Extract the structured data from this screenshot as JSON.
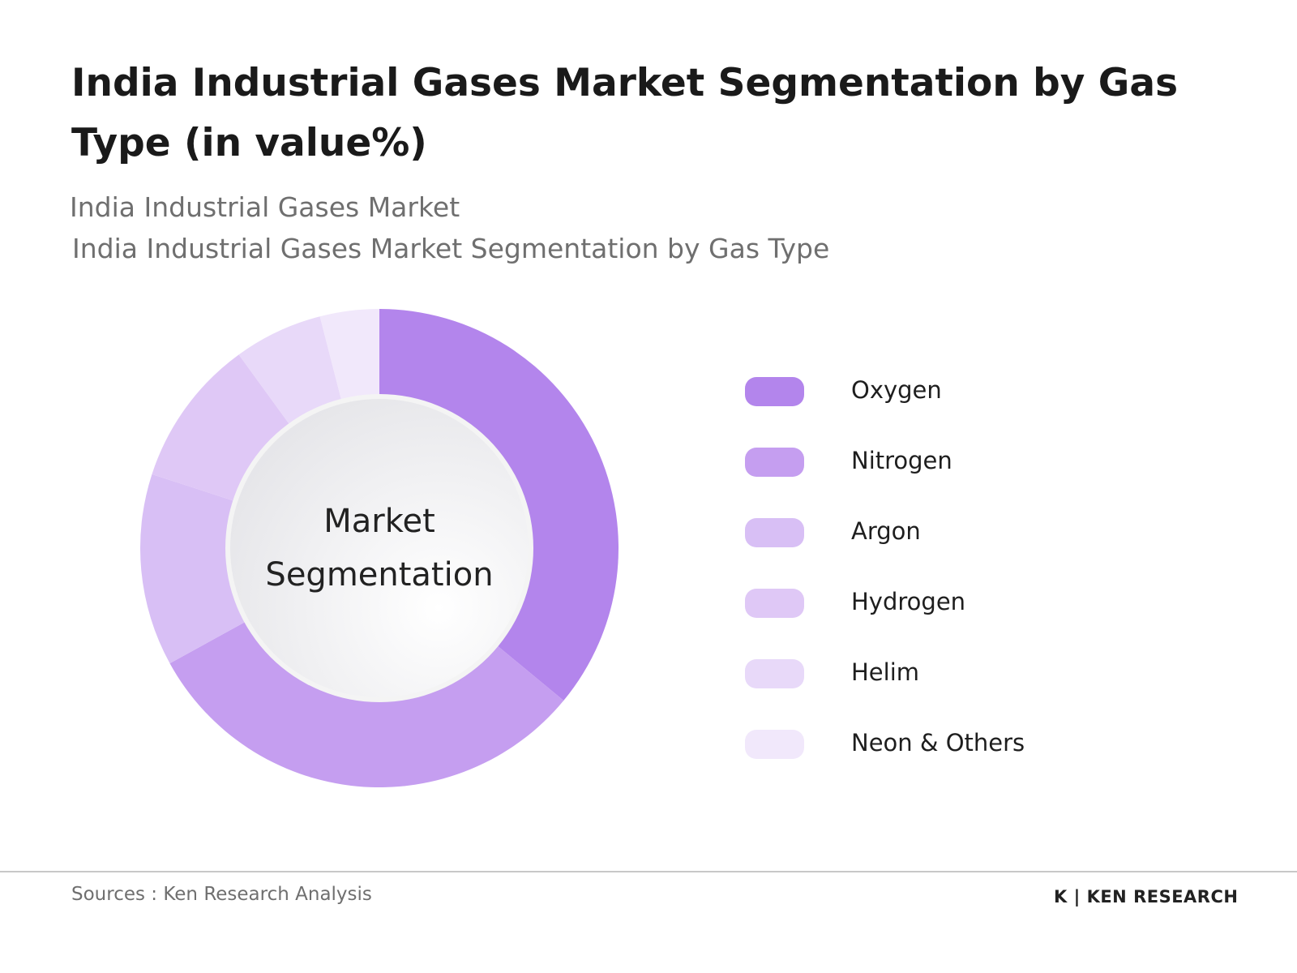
{
  "chart_data": {
    "type": "pie",
    "title": "India Industrial Gases Market Segmentation by Gas Type (in value%)",
    "subtitles": [
      "India Industrial Gases Market",
      "India Industrial Gases Market Segmentation by Gas Type"
    ],
    "center_label": "Market Segmentation",
    "categories": [
      "Oxygen",
      "Nitrogen",
      "Argon",
      "Hydrogen",
      "Helim",
      "Neon & Others"
    ],
    "values": [
      36,
      31,
      13,
      10,
      6,
      4
    ],
    "colors": [
      "#b385ec",
      "#c59ef0",
      "#d8bff5",
      "#dfc8f6",
      "#e8d9f9",
      "#f1e8fb"
    ],
    "source": "Sources : Ken Research Analysis",
    "logo": "K | KEN RESEARCH"
  }
}
